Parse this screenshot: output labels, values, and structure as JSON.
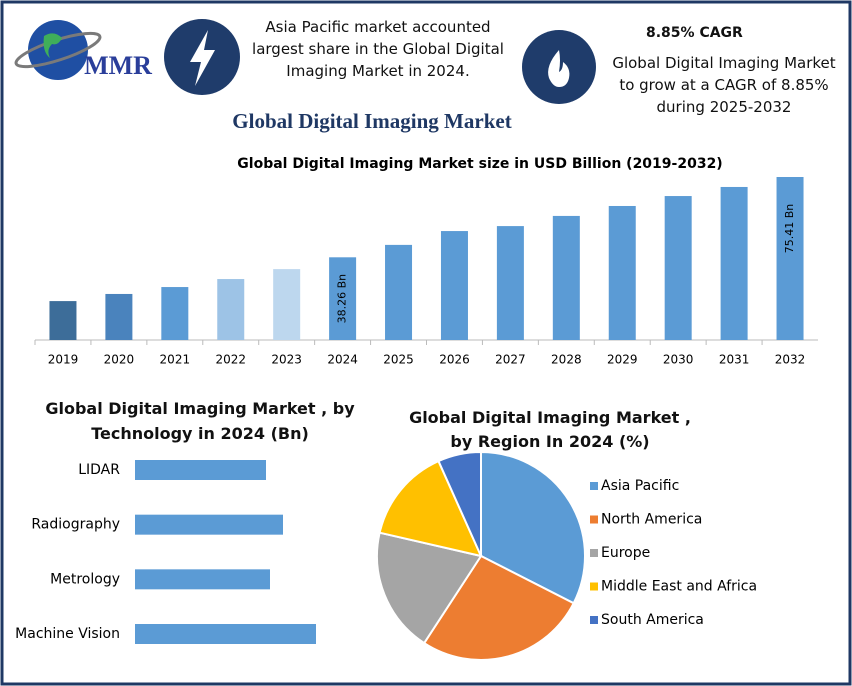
{
  "header": {
    "logo_text": "MMR",
    "highlight_text": "Asia Pacific market accounted largest share in the Global Digital Imaging Market in 2024.",
    "cagr_title": "8.85% CAGR",
    "cagr_text": "Global Digital Imaging Market to grow at a CAGR of 8.85% during 2025-2032",
    "title": "Global Digital Imaging Market"
  },
  "chart_data": [
    {
      "type": "bar",
      "title": "Global Digital Imaging Market size in USD Billion (2019-2032)",
      "categories": [
        "2019",
        "2020",
        "2021",
        "2022",
        "2023",
        "2024",
        "2025",
        "2026",
        "2027",
        "2028",
        "2029",
        "2030",
        "2031",
        "2032"
      ],
      "values": [
        18.0,
        21.3,
        24.5,
        28.2,
        32.8,
        38.26,
        44.0,
        50.4,
        52.7,
        57.4,
        62.0,
        66.6,
        70.8,
        75.41
      ],
      "value_labels": [
        null,
        null,
        null,
        null,
        null,
        "38.26 Bn",
        null,
        null,
        null,
        null,
        null,
        null,
        null,
        "75.41 Bn"
      ],
      "colors": [
        "#3d6d99",
        "#4a83bd",
        "#5b9bd5",
        "#9dc3e6",
        "#bdd7ee",
        "#5b9bd5",
        "#5b9bd5",
        "#5b9bd5",
        "#5b9bd5",
        "#5b9bd5",
        "#5b9bd5",
        "#5b9bd5",
        "#5b9bd5",
        "#5b9bd5"
      ]
    },
    {
      "type": "hbar",
      "title": "Global Digital Imaging Market , by Technology in 2024 (Bn)",
      "categories": [
        "LIDAR",
        "Radiography",
        "Metrology",
        "Machine Vision"
      ],
      "values": [
        6.55,
        7.4,
        6.75,
        9.05
      ],
      "color": "#5b9bd5"
    },
    {
      "type": "pie",
      "title": "Global Digital Imaging Market , by Region In 2024 (%)",
      "categories": [
        "Asia Pacific",
        "North America",
        "Europe",
        "Middle East and Africa",
        "South America"
      ],
      "values": [
        32.5,
        26.7,
        19.4,
        14.7,
        6.7
      ],
      "colors": [
        "#5b9bd5",
        "#ed7d31",
        "#a5a5a5",
        "#ffc000",
        "#4472c4"
      ],
      "legend": "right"
    }
  ]
}
